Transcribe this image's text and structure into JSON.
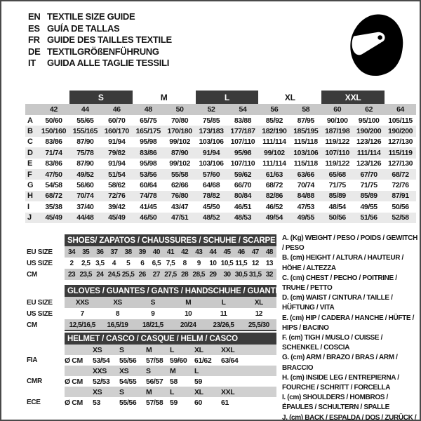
{
  "header": {
    "languages": [
      {
        "code": "EN",
        "title": "TEXTILE SIZE GUIDE"
      },
      {
        "code": "ES",
        "title": "GUÍA DE TALLAS"
      },
      {
        "code": "FR",
        "title": "GUIDE DES TAILLES TEXTILE"
      },
      {
        "code": "DE",
        "title": "TEXTILGRÖßENFÜHRUNG"
      },
      {
        "code": "IT",
        "title": "GUIDA ALLE TAGLIE TESSILI"
      }
    ]
  },
  "apparel_table": {
    "group_headers": [
      {
        "label": "S",
        "dark": true
      },
      {
        "label": "M",
        "dark": false
      },
      {
        "label": "L",
        "dark": true
      },
      {
        "label": "XL",
        "dark": false
      },
      {
        "label": "XXL",
        "dark": true
      }
    ],
    "sizes": [
      "42",
      "44",
      "46",
      "48",
      "50",
      "52",
      "54",
      "56",
      "58",
      "60",
      "62",
      "64"
    ],
    "rows": [
      {
        "key": "A",
        "values": [
          "50/60",
          "55/65",
          "60/70",
          "65/75",
          "70/80",
          "75/85",
          "83/88",
          "85/92",
          "87/95",
          "90/100",
          "95/100",
          "105/115"
        ]
      },
      {
        "key": "B",
        "values": [
          "150/160",
          "155/165",
          "160/170",
          "165/175",
          "170/180",
          "173/183",
          "177/187",
          "182/190",
          "185/195",
          "187/198",
          "190/200",
          "190/200"
        ]
      },
      {
        "key": "C",
        "values": [
          "83/86",
          "87/90",
          "91/94",
          "95/98",
          "99/102",
          "103/106",
          "107/110",
          "111/114",
          "115/118",
          "119/122",
          "123/126",
          "127/130"
        ]
      },
      {
        "key": "D",
        "values": [
          "71/74",
          "75/78",
          "79/82",
          "83/86",
          "87/90",
          "91/94",
          "95/98",
          "99/102",
          "103/106",
          "107/110",
          "111/114",
          "115/119"
        ]
      },
      {
        "key": "E",
        "values": [
          "83/86",
          "87/90",
          "91/94",
          "95/98",
          "99/102",
          "103/106",
          "107/110",
          "111/114",
          "115/118",
          "119/122",
          "123/126",
          "127/130"
        ]
      },
      {
        "key": "F",
        "values": [
          "47/50",
          "49/52",
          "51/54",
          "53/56",
          "55/58",
          "57/60",
          "59/62",
          "61/63",
          "63/66",
          "65/68",
          "67/70",
          "68/72"
        ]
      },
      {
        "key": "G",
        "values": [
          "54/58",
          "56/60",
          "58/62",
          "60/64",
          "62/66",
          "64/68",
          "66/70",
          "68/72",
          "70/74",
          "71/75",
          "71/75",
          "72/76"
        ]
      },
      {
        "key": "H",
        "values": [
          "68/72",
          "70/74",
          "72/76",
          "74/78",
          "76/80",
          "78/82",
          "80/84",
          "82/86",
          "84/88",
          "85/89",
          "85/89",
          "87/91"
        ]
      },
      {
        "key": "I",
        "values": [
          "35/38",
          "37/40",
          "39/42",
          "41/45",
          "43/47",
          "45/50",
          "46/51",
          "46/52",
          "47/53",
          "48/54",
          "49/55",
          "50/56"
        ]
      },
      {
        "key": "J",
        "values": [
          "45/49",
          "44/48",
          "45/49",
          "46/50",
          "47/51",
          "48/52",
          "48/53",
          "49/54",
          "49/55",
          "50/56",
          "51/56",
          "52/58"
        ]
      }
    ]
  },
  "shoes_table": {
    "title": "SHOES/ ZAPATOS / CHAUSSURES / SCHUHE / SCARPE",
    "rows": [
      {
        "label": "EU SIZE",
        "shaded": true,
        "values": [
          "34",
          "35",
          "36",
          "37",
          "38",
          "39",
          "40",
          "41",
          "42",
          "43",
          "44",
          "45",
          "46",
          "47",
          "48"
        ]
      },
      {
        "label": "US SIZE",
        "shaded": false,
        "values": [
          "2",
          "2,5",
          "3,5",
          "4",
          "5",
          "6",
          "6,5",
          "7,5",
          "8",
          "9",
          "10",
          "10,5",
          "11,5",
          "12",
          "13"
        ]
      },
      {
        "label": "CM",
        "shaded": true,
        "values": [
          "23",
          "23,5",
          "24",
          "24,5",
          "25,5",
          "26",
          "27",
          "27,5",
          "28",
          "28,5",
          "29",
          "30",
          "30,5",
          "31,5",
          "32"
        ]
      }
    ]
  },
  "gloves_table": {
    "title": "GLOVES / GUANTES / GANTS / HANDSCHUHE / GUANTI",
    "rows": [
      {
        "label": "EU SIZE",
        "shaded": true,
        "values": [
          "XXS",
          "XS",
          "S",
          "M",
          "L",
          "XL"
        ]
      },
      {
        "label": "US SIZE",
        "shaded": false,
        "values": [
          "7",
          "8",
          "9",
          "10",
          "11",
          "12"
        ]
      },
      {
        "label": "CM",
        "shaded": true,
        "values": [
          "12,5/16,5",
          "16,5/19",
          "18/21,5",
          "20/24",
          "23/26,5",
          "25,5/30"
        ]
      }
    ]
  },
  "helmet_table": {
    "title": "HELMET / CASCO / CASQUE / HELM / CASCO",
    "unit": "Ø CM",
    "sections": [
      {
        "label": "FIA",
        "sizes": [
          "XS",
          "S",
          "M",
          "L",
          "XL",
          "XXL"
        ],
        "values": [
          "53/54",
          "55/56",
          "57/58",
          "59/60",
          "61/62",
          "63/64"
        ]
      },
      {
        "label": "CMR",
        "sizes": [
          "XXS",
          "XS",
          "S",
          "M",
          "L"
        ],
        "values": [
          "52/53",
          "54/55",
          "56/57",
          "58",
          "59"
        ]
      },
      {
        "label": "ECE",
        "sizes": [
          "XS",
          "S",
          "M",
          "L",
          "XL",
          "XXL"
        ],
        "values": [
          "53",
          "55/56",
          "57/58",
          "59",
          "60",
          "61"
        ]
      }
    ]
  },
  "legend": {
    "items": [
      "A. (Kg) WEIGHT / PESO / POIDS / GEWITCH / PESO",
      "B. (cm) HEIGHT / ALTURA / HAUTEUR / HÖHE / ALTEZZA",
      "C. (cm) CHEST / PECHO / POITRINE / TRUHE / PETTO",
      "D. (cm) WAIST / CINTURA / TAILLE / HÜFTUNG / VITA",
      "E. (cm) HIP / CADERA / HANCHE / HÜFTE / HIPS / BACINO",
      "F. (cm) TIGH / MUSLO / CUISSE / SCHENKEL / COSCIA",
      "G. (cm) ARM / BRAZO / BRAS / ARM / BRACCIO",
      "H. (cm) INSIDE LEG / ENTREPIERNA / FOURCHE / SCHRITT / FORCELLA",
      "I. (cm) SHOULDERS / HOMBROS / ÉPAULES / SCHULTERN / SPALLE",
      "J. (cm) BACK / ESPALDA / DOS / ZURÜCK / INDIETRO"
    ]
  },
  "colors": {
    "dark_bar": "#3b3b3b",
    "shaded_row": "#c9c9c9",
    "alt_row": "#e9e9e9",
    "text": "#161616"
  },
  "icons": {
    "helmet": "full-face-helmet-icon"
  }
}
